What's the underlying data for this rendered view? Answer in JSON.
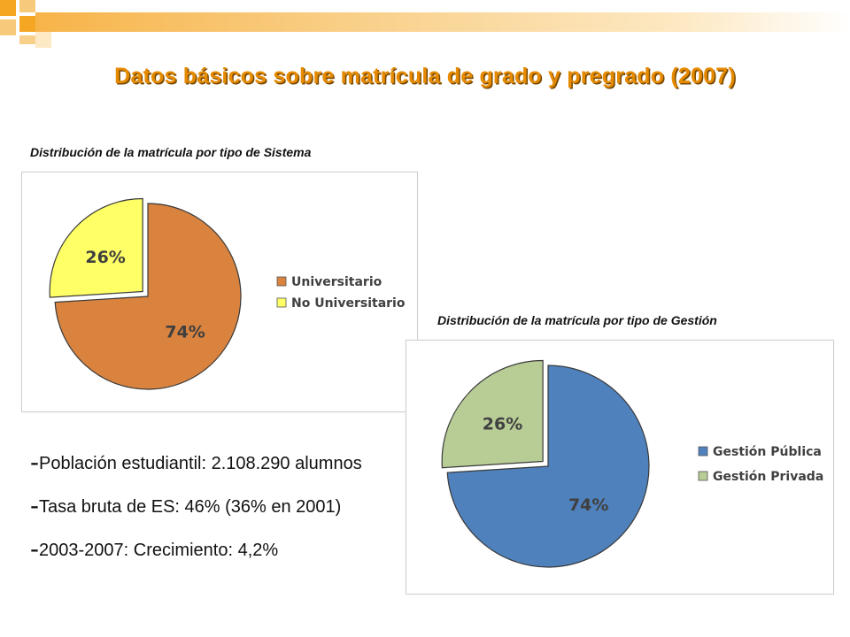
{
  "slide": {
    "title": "Datos básicos sobre matrícula de grado y pregrado (2007)",
    "title_color": "#e68a00",
    "accent_colors": [
      "#f5a623",
      "#f7c97a",
      "#fde9c4"
    ]
  },
  "charts": {
    "sistema_caption": "Distribución de la matrícula por tipo de Sistema",
    "gestion_caption": "Distribución de la matrícula por tipo de Gestión"
  },
  "chart_data": [
    {
      "type": "pie",
      "title": "Distribución de la matrícula por tipo de Sistema",
      "categories": [
        "Universitario",
        "No Universitario"
      ],
      "values": [
        74,
        26
      ],
      "labels": [
        "74%",
        "26%"
      ],
      "colors": [
        "#d9833f",
        "#ffff66"
      ],
      "exploded": [
        false,
        true
      ],
      "legend": "right"
    },
    {
      "type": "pie",
      "title": "Distribución de la matrícula por tipo de Gestión",
      "categories": [
        "Gestión Pública",
        "Gestión Privada"
      ],
      "values": [
        74,
        26
      ],
      "labels": [
        "74%",
        "26%"
      ],
      "colors": [
        "#4f81bd",
        "#b8cc96"
      ],
      "exploded": [
        false,
        true
      ],
      "legend": "right"
    }
  ],
  "bullets": [
    {
      "dash": "-",
      "text": "Población estudiantil: 2.108.290 alumnos"
    },
    {
      "dash": "-",
      "text": "Tasa bruta de ES: 46% (36% en 2001)"
    },
    {
      "dash": "-",
      "text": "2003-2007: Crecimiento: 4,2%"
    }
  ]
}
